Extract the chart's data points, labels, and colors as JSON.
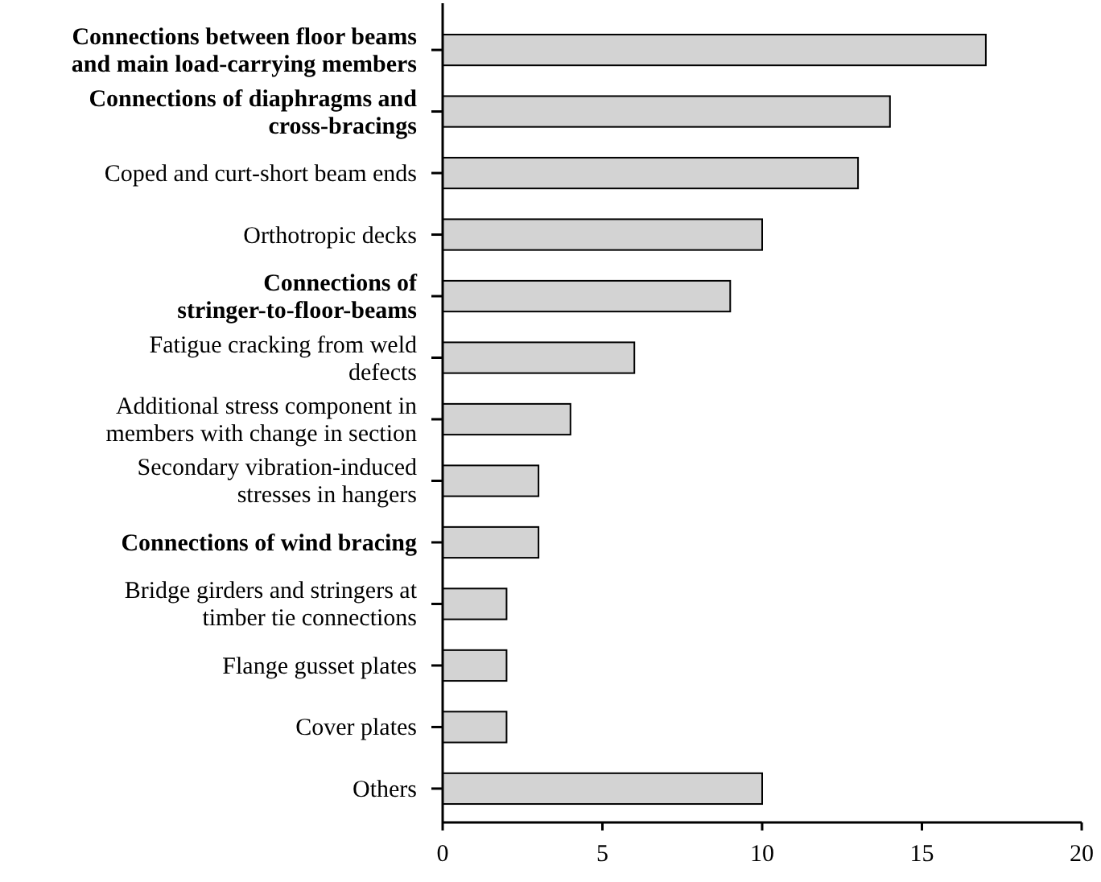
{
  "chart_data": {
    "type": "bar",
    "orientation": "horizontal",
    "categories": [
      "Connections between floor beams and main load-carrying members",
      "Connections of diaphragms and cross-bracings",
      "Coped and curt-short beam ends",
      "Orthotropic decks",
      "Connections of stringer-to-floor-beams",
      "Fatigue cracking from weld defects",
      "Additional stress component in members with change in section",
      "Secondary vibration-induced stresses in hangers",
      "Connections of wind bracing",
      "Bridge girders and stringers at timber tie connections",
      "Flange gusset plates",
      "Cover plates",
      "Others"
    ],
    "values": [
      17,
      14,
      13,
      10,
      9,
      6,
      4,
      3,
      3,
      2,
      2,
      2,
      10
    ],
    "color": "#d3d3d3",
    "xlim": [
      0,
      20
    ],
    "xticks": [
      0,
      5,
      10,
      15,
      20
    ],
    "grid": false
  }
}
